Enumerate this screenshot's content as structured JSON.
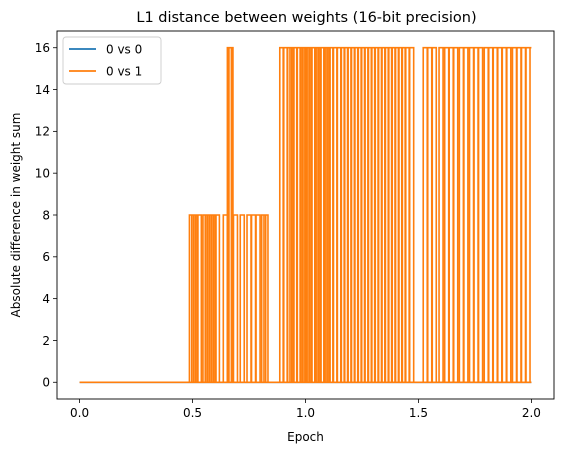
{
  "chart_data": {
    "type": "line",
    "title": "L1 distance between weights (16-bit precision)",
    "xlabel": "Epoch",
    "ylabel": "Absolute difference in weight sum",
    "xlim": [
      -0.1,
      2.1
    ],
    "ylim": [
      -0.8,
      16.8
    ],
    "xticks": [
      0.0,
      0.5,
      1.0,
      1.5,
      2.0
    ],
    "xtick_labels": [
      "0.0",
      "0.5",
      "1.0",
      "1.5",
      "2.0"
    ],
    "yticks": [
      0,
      2,
      4,
      6,
      8,
      10,
      12,
      14,
      16
    ],
    "ytick_labels": [
      "0",
      "2",
      "4",
      "6",
      "8",
      "10",
      "12",
      "14",
      "16"
    ],
    "grid": false,
    "legend": "upper-left",
    "series": [
      {
        "name": "0 vs 0",
        "color": "#1f77b4",
        "points": [
          [
            0.0,
            0
          ],
          [
            1.19,
            0
          ],
          [
            1.19,
            0
          ],
          [
            1.59,
            0
          ],
          [
            1.63,
            0
          ],
          [
            2.0,
            0
          ]
        ]
      },
      {
        "name": "0 vs 1",
        "color": "#ff7f0e",
        "spike_segments": [
          {
            "x": 0.495,
            "y": 8
          },
          {
            "x": 0.505,
            "y": 8
          },
          {
            "x": 0.515,
            "y": 8
          },
          {
            "x": 0.53,
            "y": 8
          },
          {
            "x": 0.555,
            "y": 8
          },
          {
            "x": 0.565,
            "y": 8
          },
          {
            "x": 0.575,
            "y": 8
          },
          {
            "x": 0.585,
            "y": 8
          },
          {
            "x": 0.595,
            "y": 8
          },
          {
            "x": 0.61,
            "y": 8
          },
          {
            "x": 0.645,
            "y": 8
          },
          {
            "x": 0.663,
            "y": 16
          },
          {
            "x": 0.67,
            "y": 16
          },
          {
            "x": 0.69,
            "y": 8
          },
          {
            "x": 0.72,
            "y": 8
          },
          {
            "x": 0.75,
            "y": 8
          },
          {
            "x": 0.77,
            "y": 8
          },
          {
            "x": 0.79,
            "y": 8
          },
          {
            "x": 0.815,
            "y": 8
          },
          {
            "x": 0.825,
            "y": 8
          },
          {
            "x": 0.895,
            "y": 16
          },
          {
            "x": 0.91,
            "y": 16
          },
          {
            "x": 0.93,
            "y": 16
          },
          {
            "x": 0.94,
            "y": 16
          },
          {
            "x": 0.955,
            "y": 16
          },
          {
            "x": 0.97,
            "y": 16
          },
          {
            "x": 0.985,
            "y": 16
          },
          {
            "x": 0.995,
            "y": 16
          },
          {
            "x": 1.01,
            "y": 16
          },
          {
            "x": 1.02,
            "y": 16
          },
          {
            "x": 1.035,
            "y": 16
          },
          {
            "x": 1.05,
            "y": 16
          },
          {
            "x": 1.06,
            "y": 16
          },
          {
            "x": 1.075,
            "y": 16
          },
          {
            "x": 1.09,
            "y": 16
          },
          {
            "x": 1.1,
            "y": 16
          },
          {
            "x": 1.115,
            "y": 16
          },
          {
            "x": 1.13,
            "y": 16
          },
          {
            "x": 1.15,
            "y": 16
          },
          {
            "x": 1.165,
            "y": 16
          },
          {
            "x": 1.18,
            "y": 16
          },
          {
            "x": 1.195,
            "y": 16
          },
          {
            "x": 1.21,
            "y": 16
          },
          {
            "x": 1.225,
            "y": 16
          },
          {
            "x": 1.24,
            "y": 16
          },
          {
            "x": 1.255,
            "y": 16
          },
          {
            "x": 1.27,
            "y": 16
          },
          {
            "x": 1.285,
            "y": 16
          },
          {
            "x": 1.3,
            "y": 16
          },
          {
            "x": 1.315,
            "y": 16
          },
          {
            "x": 1.33,
            "y": 16
          },
          {
            "x": 1.345,
            "y": 16
          },
          {
            "x": 1.36,
            "y": 16
          },
          {
            "x": 1.375,
            "y": 16
          },
          {
            "x": 1.39,
            "y": 16
          },
          {
            "x": 1.405,
            "y": 16
          },
          {
            "x": 1.42,
            "y": 16
          },
          {
            "x": 1.435,
            "y": 16
          },
          {
            "x": 1.45,
            "y": 16
          },
          {
            "x": 1.47,
            "y": 16
          },
          {
            "x": 1.53,
            "y": 16
          },
          {
            "x": 1.55,
            "y": 16
          },
          {
            "x": 1.57,
            "y": 16
          },
          {
            "x": 1.6,
            "y": 16
          },
          {
            "x": 1.625,
            "y": 16
          },
          {
            "x": 1.645,
            "y": 16
          },
          {
            "x": 1.665,
            "y": 16
          },
          {
            "x": 1.69,
            "y": 16
          },
          {
            "x": 1.71,
            "y": 16
          },
          {
            "x": 1.735,
            "y": 16
          },
          {
            "x": 1.755,
            "y": 16
          },
          {
            "x": 1.775,
            "y": 16
          },
          {
            "x": 1.8,
            "y": 16
          },
          {
            "x": 1.82,
            "y": 16
          },
          {
            "x": 1.84,
            "y": 16
          },
          {
            "x": 1.86,
            "y": 16
          },
          {
            "x": 1.88,
            "y": 16
          },
          {
            "x": 1.9,
            "y": 16
          },
          {
            "x": 1.925,
            "y": 16
          },
          {
            "x": 1.945,
            "y": 16
          },
          {
            "x": 1.965,
            "y": 16
          },
          {
            "x": 1.985,
            "y": 16
          }
        ],
        "plateaus": [
          {
            "x0": 0.5,
            "x1": 0.52,
            "y": 8
          },
          {
            "x0": 0.555,
            "x1": 0.6,
            "y": 8
          },
          {
            "x0": 1.205,
            "x1": 1.23,
            "y": 16
          },
          {
            "x0": 1.29,
            "x1": 1.33,
            "y": 16
          },
          {
            "x0": 1.375,
            "x1": 1.41,
            "y": 16
          },
          {
            "x0": 1.44,
            "x1": 1.47,
            "y": 16
          },
          {
            "x0": 1.53,
            "x1": 1.57,
            "y": 16
          },
          {
            "x0": 1.6,
            "x1": 1.64,
            "y": 16
          },
          {
            "x0": 1.69,
            "x1": 1.74,
            "y": 16
          },
          {
            "x0": 1.79,
            "x1": 1.83,
            "y": 16
          },
          {
            "x0": 1.88,
            "x1": 1.92,
            "y": 16
          },
          {
            "x0": 1.94,
            "x1": 2.0,
            "y": 16
          }
        ],
        "x_start": 0.0,
        "x_end": 2.0
      }
    ]
  }
}
